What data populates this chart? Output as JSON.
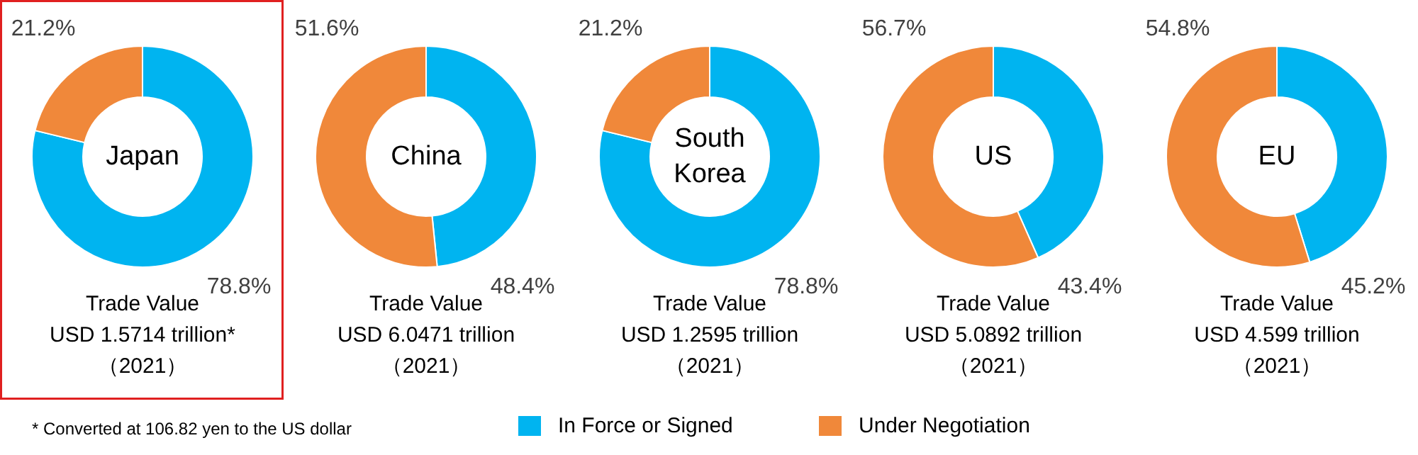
{
  "chart_data": [
    {
      "type": "donut",
      "title": "Japan",
      "categories": [
        "In Force or Signed",
        "Under Negotiation"
      ],
      "values": [
        78.8,
        21.2
      ],
      "colors": [
        "#00b4f0",
        "#f0883a"
      ],
      "value_labels": [
        "78.8%",
        "21.2%"
      ],
      "annotations": [
        "Trade Value",
        "USD 1.5714 trillion*",
        "（2021）",
        "* Converted at 106.82 yen to the US dollar"
      ],
      "legend": "bottom"
    },
    {
      "type": "donut",
      "title": "China",
      "categories": [
        null,
        null
      ],
      "values": [
        48.4,
        51.6
      ],
      "colors": [
        "#00b4f0",
        "#f0883a"
      ],
      "value_labels": [
        "48.4%",
        "51.6%"
      ],
      "annotations": [
        "Trade Value",
        "USD 6.0471 trillion",
        "（2021）"
      ]
    },
    {
      "type": "donut",
      "title": "South\nKorea",
      "categories": [
        null,
        null
      ],
      "values": [
        78.8,
        21.2
      ],
      "colors": [
        "#00b4f0",
        "#f0883a"
      ],
      "value_labels": [
        "78.8%",
        "21.2%"
      ],
      "annotations": [
        "Trade Value",
        "USD 1.2595 trillion",
        "（2021）"
      ]
    },
    {
      "type": "donut",
      "title": "US",
      "categories": [
        null,
        null
      ],
      "values": [
        43.4,
        56.7
      ],
      "colors": [
        "#00b4f0",
        "#f0883a"
      ],
      "value_labels": [
        "43.4%",
        "56.7%"
      ],
      "annotations": [
        "Trade Value",
        "USD 5.0892 trillion",
        "（2021）"
      ]
    },
    {
      "type": "donut",
      "title": "EU",
      "categories": [
        null,
        null
      ],
      "values": [
        45.2,
        54.8
      ],
      "colors": [
        "#00b4f0",
        "#f0883a"
      ],
      "value_labels": [
        "45.2%",
        "54.8%"
      ],
      "annotations": [
        "Trade Value",
        "USD 4.599 trillion",
        "（2021）"
      ]
    }
  ]
}
